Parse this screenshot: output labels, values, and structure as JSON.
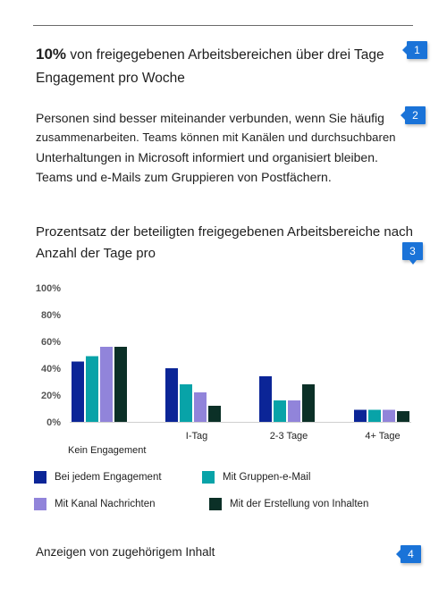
{
  "headline": {
    "percent": "10%",
    "text": "von freigegebenen Arbeitsbereichen über drei Tage Engagement pro Woche"
  },
  "description": {
    "line1": "Personen sind besser miteinander verbunden, wenn Sie häufig",
    "line2": "zusammenarbeiten. Teams können mit Kanälen und durchsuchbaren",
    "line3": "Unterhaltungen in Microsoft informiert und organisiert bleiben.",
    "line4": "Teams und e-Mails zum Gruppieren von Postfächern."
  },
  "chart_title": "Prozentsatz der beteiligten freigegebenen Arbeitsbereiche nach Anzahl der Tage pro",
  "chart_data": {
    "type": "bar",
    "categories": [
      "Kein Engagement",
      "I-Tag",
      "2-3 Tage",
      "4+ Tage"
    ],
    "series": [
      {
        "name": "Bei jedem Engagement",
        "color": "#0b2597",
        "values": [
          45,
          40,
          34,
          9
        ]
      },
      {
        "name": "Mit Gruppen-e-Mail",
        "color": "#08a3a8",
        "values": [
          49,
          28,
          16,
          9
        ]
      },
      {
        "name": "Mit Kanal Nachrichten",
        "color": "#9184da",
        "values": [
          56,
          22,
          16,
          9
        ]
      },
      {
        "name": "Mit der Erstellung von Inhalten",
        "color": "#0b3027",
        "values": [
          56,
          12,
          28,
          8
        ]
      }
    ],
    "yticks": [
      "0%",
      "20%",
      "40%",
      "60%",
      "80%",
      "100%"
    ],
    "ylim": [
      0,
      100
    ]
  },
  "related_link": "Anzeigen von zugehörigem Inhalt",
  "callouts": [
    "1",
    "2",
    "3",
    "4"
  ]
}
